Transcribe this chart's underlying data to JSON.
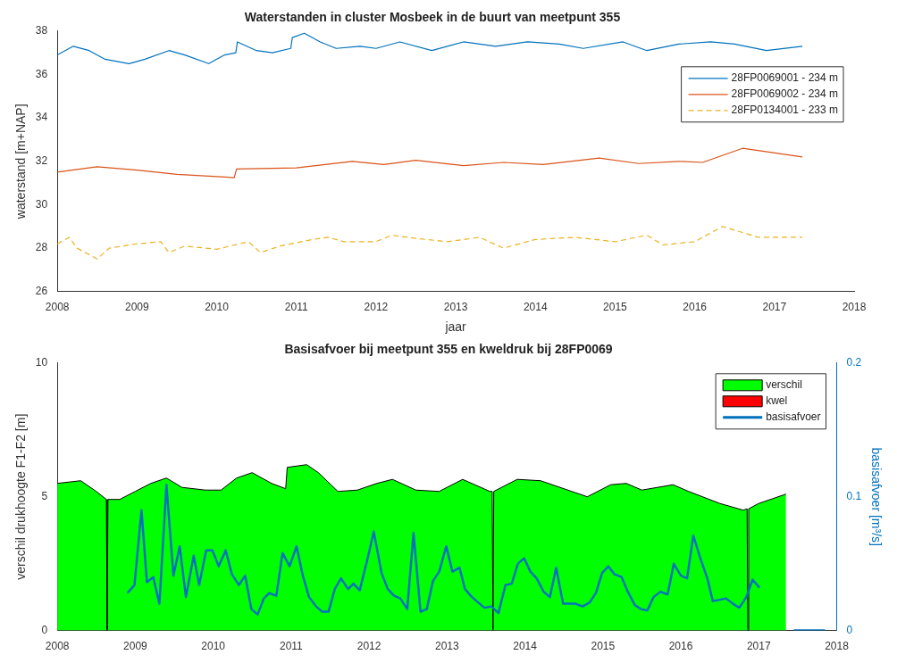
{
  "chart_data": [
    {
      "type": "line",
      "title": "Waterstanden in cluster Mosbeek in de buurt van meetpunt 355",
      "xlabel": "jaar",
      "ylabel": "waterstand [m+NAP]",
      "xlim": [
        2008,
        2018
      ],
      "xticks": [
        2008,
        2009,
        2010,
        2011,
        2012,
        2013,
        2014,
        2015,
        2016,
        2017,
        2018
      ],
      "ylim": [
        26,
        38
      ],
      "yticks": [
        26,
        28,
        30,
        32,
        34,
        36,
        38
      ],
      "legend": "top right",
      "marker": "none",
      "grid": false,
      "series": [
        {
          "name": "28FP0069001 - 234 m",
          "color": "#0072bd",
          "line_style": "solid",
          "x": [
            2008.0,
            2008.2,
            2008.4,
            2008.6,
            2008.9,
            2009.1,
            2009.4,
            2009.6,
            2009.9,
            2010.1,
            2010.24,
            2010.26,
            2010.5,
            2010.7,
            2010.93,
            2010.95,
            2011.1,
            2011.3,
            2011.5,
            2011.8,
            2012.0,
            2012.3,
            2012.7,
            2013.1,
            2013.5,
            2013.9,
            2014.3,
            2014.6,
            2015.1,
            2015.4,
            2015.8,
            2016.2,
            2016.5,
            2016.9,
            2017.35
          ],
          "values": [
            36.9,
            37.3,
            37.1,
            36.7,
            36.5,
            36.7,
            37.1,
            36.9,
            36.5,
            36.9,
            37.0,
            37.5,
            37.1,
            37.0,
            37.2,
            37.7,
            37.9,
            37.5,
            37.2,
            37.3,
            37.2,
            37.5,
            37.1,
            37.5,
            37.3,
            37.5,
            37.4,
            37.2,
            37.5,
            37.1,
            37.4,
            37.5,
            37.4,
            37.1,
            37.3
          ]
        },
        {
          "name": "28FP0069002 - 234 m",
          "color": "#d95319",
          "line_style": "solid",
          "x": [
            2008.0,
            2008.5,
            2009.0,
            2009.5,
            2010.22,
            2010.25,
            2011.0,
            2011.7,
            2012.1,
            2012.5,
            2013.1,
            2013.6,
            2014.1,
            2014.8,
            2015.3,
            2015.8,
            2016.1,
            2016.6,
            2017.35
          ],
          "values": [
            31.5,
            31.75,
            31.6,
            31.4,
            31.25,
            31.65,
            31.7,
            32.0,
            31.85,
            32.05,
            31.8,
            31.95,
            31.85,
            32.15,
            31.9,
            32.0,
            31.95,
            32.6,
            32.2
          ]
        },
        {
          "name": "28FP0134001 - 233 m",
          "color": "#edb120",
          "line_style": "dashed",
          "x": [
            2008.0,
            2008.15,
            2008.25,
            2008.5,
            2008.65,
            2009.0,
            2009.3,
            2009.4,
            2009.6,
            2010.0,
            2010.4,
            2010.55,
            2010.8,
            2011.2,
            2011.4,
            2011.6,
            2012.0,
            2012.2,
            2012.5,
            2012.9,
            2013.3,
            2013.6,
            2014.0,
            2014.5,
            2015.0,
            2015.4,
            2015.6,
            2016.0,
            2016.35,
            2016.8,
            2017.35
          ],
          "values": [
            28.2,
            28.5,
            28.0,
            27.5,
            28.0,
            28.2,
            28.3,
            27.8,
            28.1,
            27.95,
            28.3,
            27.8,
            28.1,
            28.4,
            28.5,
            28.3,
            28.3,
            28.6,
            28.45,
            28.3,
            28.5,
            28.0,
            28.4,
            28.5,
            28.3,
            28.6,
            28.15,
            28.3,
            29.0,
            28.5,
            28.5
          ]
        }
      ]
    },
    {
      "type": "area",
      "title": "Basisafvoer bij meetpunt 355 en kweldruk bij 28FP0069",
      "ylabel": "verschil drukhoogte F1-F2 [m]",
      "y2label": "basisafvoer [m³/s]",
      "xlim": [
        2008,
        2018
      ],
      "xticks": [
        2008,
        2009,
        2010,
        2011,
        2012,
        2013,
        2014,
        2015,
        2016,
        2017,
        2018
      ],
      "ylim": [
        0,
        10
      ],
      "yticks": [
        0,
        5,
        10
      ],
      "y2lim": [
        0,
        0.2
      ],
      "y2ticks": [
        0,
        0.1,
        0.2
      ],
      "legend": "top right",
      "marker": "none",
      "grid": false,
      "series": [
        {
          "name": "verschil",
          "type": "area",
          "color": "#00ff00",
          "x": [
            2008.0,
            2008.3,
            2008.5,
            2008.63,
            2008.64,
            2008.65,
            2008.8,
            2009.0,
            2009.2,
            2009.4,
            2009.6,
            2009.9,
            2010.1,
            2010.3,
            2010.5,
            2010.75,
            2010.93,
            2010.95,
            2011.2,
            2011.35,
            2011.6,
            2011.85,
            2012.1,
            2012.3,
            2012.6,
            2012.9,
            2013.2,
            2013.55,
            2013.58,
            2013.59,
            2013.6,
            2013.7,
            2013.9,
            2014.2,
            2014.6,
            2014.8,
            2015.1,
            2015.3,
            2015.5,
            2015.9,
            2016.1,
            2016.5,
            2016.8,
            2016.85,
            2016.86,
            2016.87,
            2017.0,
            2017.35
          ],
          "values": [
            5.5,
            5.6,
            5.2,
            4.9,
            0,
            4.9,
            4.9,
            5.2,
            5.5,
            5.7,
            5.35,
            5.25,
            5.25,
            5.7,
            5.9,
            5.5,
            5.3,
            6.1,
            6.2,
            5.9,
            5.2,
            5.25,
            5.5,
            5.65,
            5.25,
            5.2,
            5.65,
            5.2,
            5.2,
            0,
            5.2,
            5.35,
            5.65,
            5.6,
            5.2,
            5.0,
            5.45,
            5.5,
            5.25,
            5.45,
            5.2,
            4.75,
            4.5,
            4.55,
            0,
            4.55,
            4.75,
            5.1
          ]
        },
        {
          "name": "kwel",
          "type": "area",
          "color": "#ff0000"
        },
        {
          "name": "basisafvoer",
          "type": "line",
          "axis": "y2",
          "color": "#0072bd",
          "x": [
            2008.9,
            2008.99,
            2009.08,
            2009.15,
            2009.23,
            2009.31,
            2009.4,
            2009.49,
            2009.57,
            2009.65,
            2009.75,
            2009.82,
            2009.91,
            2009.99,
            2010.07,
            2010.16,
            2010.24,
            2010.33,
            2010.41,
            2010.49,
            2010.57,
            2010.65,
            2010.72,
            2010.81,
            2010.89,
            2010.98,
            2011.07,
            2011.15,
            2011.23,
            2011.32,
            2011.4,
            2011.48,
            2011.56,
            2011.64,
            2011.73,
            2011.8,
            2011.88,
            2011.99,
            2012.06,
            2012.16,
            2012.24,
            2012.32,
            2012.4,
            2012.49,
            2012.57,
            2012.66,
            2012.74,
            2012.82,
            2012.9,
            2012.99,
            2013.07,
            2013.16,
            2013.23,
            2013.32,
            2013.4,
            2013.48,
            2013.57,
            2013.66,
            2013.75,
            2013.83,
            2013.91,
            2013.99,
            2014.07,
            2014.15,
            2014.24,
            2014.32,
            2014.4,
            2014.49,
            2014.57,
            2014.65,
            2014.74,
            2014.83,
            2014.91,
            2014.99,
            2015.07,
            2015.15,
            2015.24,
            2015.32,
            2015.41,
            2015.49,
            2015.57,
            2015.65,
            2015.74,
            2015.83,
            2015.91,
            2016.0,
            2016.08,
            2016.16,
            2016.25,
            2016.34,
            2016.41,
            2016.5,
            2016.58,
            2016.67,
            2016.75,
            2016.84,
            2016.92,
            2017.01,
            2017.2,
            2017.45,
            2017.85
          ],
          "values": [
            0.028,
            0.034,
            0.09,
            0.036,
            0.04,
            0.02,
            0.109,
            0.041,
            0.063,
            0.025,
            0.056,
            0.034,
            0.06,
            0.06,
            0.048,
            0.06,
            0.042,
            0.034,
            0.041,
            0.016,
            0.012,
            0.024,
            0.028,
            0.026,
            0.058,
            0.048,
            0.063,
            0.041,
            0.025,
            0.018,
            0.014,
            0.014,
            0.031,
            0.039,
            0.031,
            0.035,
            0.03,
            0.056,
            0.074,
            0.043,
            0.031,
            0.026,
            0.024,
            0.016,
            0.073,
            0.014,
            0.016,
            0.037,
            0.044,
            0.063,
            0.044,
            0.047,
            0.031,
            0.025,
            0.021,
            0.017,
            0.018,
            0.013,
            0.034,
            0.035,
            0.05,
            0.054,
            0.044,
            0.039,
            0.029,
            0.025,
            0.047,
            0.02,
            0.02,
            0.02,
            0.018,
            0.021,
            0.028,
            0.043,
            0.048,
            0.042,
            0.04,
            0.029,
            0.019,
            0.016,
            0.015,
            0.025,
            0.029,
            0.027,
            0.05,
            0.041,
            0.039,
            0.071,
            0.054,
            0.039,
            0.022,
            0.023,
            0.024,
            0.02,
            0.017,
            0.025,
            0.038,
            0.032,
            null,
            0,
            0
          ]
        }
      ]
    }
  ]
}
